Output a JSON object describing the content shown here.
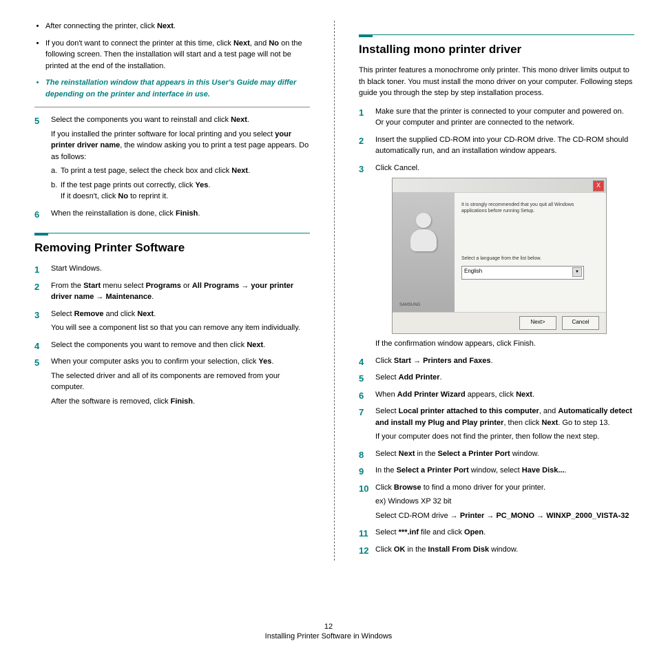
{
  "colors": {
    "accent": "#008080",
    "text": "#000000",
    "background": "#ffffff"
  },
  "left_col": {
    "bullets": {
      "b1_pre": "After connecting the printer, click ",
      "b1_bold": "Next",
      "b1_post": ".",
      "b2_pre": "If you don't want to connect the printer at this time, click ",
      "b2_bold1": "Next",
      "b2_mid": ", and ",
      "b2_bold2": "No",
      "b2_post": " on the following screen. Then the installation will start and a test page will not be printed at the end of the installation.",
      "b3_note": "The reinstallation window that appears in this User's Guide may differ depending on the printer and interface in use."
    },
    "steps_cont": {
      "s5_pre": "Select the components you want to reinstall and click ",
      "s5_bold": "Next",
      "s5_post": ".",
      "s5_sub1_pre": "If you installed the printer software for local printing and you select ",
      "s5_sub1_bold": "your printer driver name",
      "s5_sub1_post": ", the window asking you to print a test page appears. Do as follows:",
      "s5_a_letter": "a.",
      "s5_a_pre": "To print a test page, select the check box and click ",
      "s5_a_bold": "Next",
      "s5_a_post": ".",
      "s5_b_letter": "b.",
      "s5_b_pre": "If the test page prints out correctly, click ",
      "s5_b_bold": "Yes",
      "s5_b_post": ".",
      "s5_b2_pre": "If it doesn't, click ",
      "s5_b2_bold": "No",
      "s5_b2_post": " to reprint it.",
      "s6_pre": "When the reinstallation is done, click ",
      "s6_bold": "Finish",
      "s6_post": "."
    },
    "heading": "Removing Printer Software",
    "remove_steps": {
      "s1": "Start Windows.",
      "s2_pre": "From the ",
      "s2_bold1": "Start",
      "s2_mid1": " menu select ",
      "s2_bold2": "Programs",
      "s2_mid2": " or ",
      "s2_bold3": "All Programs",
      "s2_arrow1": " → ",
      "s2_bold4": "your printer driver name",
      "s2_arrow2": " → ",
      "s2_bold5": "Maintenance",
      "s2_post": ".",
      "s3_pre": "Select ",
      "s3_bold1": "Remove",
      "s3_mid": " and click ",
      "s3_bold2": "Next",
      "s3_post": ".",
      "s3_sub": "You will see a component list so that you can remove any item individually.",
      "s4_pre": "Select the components you want to remove and then click ",
      "s4_bold": "Next",
      "s4_post": ".",
      "s5_pre": "When your computer asks you to confirm your selection, click ",
      "s5_bold": "Yes",
      "s5_post": ".",
      "s5_sub1": "The selected driver and all of its components are removed from your computer.",
      "s5_sub2_pre": "After the software is removed, click ",
      "s5_sub2_bold": "Finish",
      "s5_sub2_post": "."
    }
  },
  "right_col": {
    "heading": "Installing mono printer driver",
    "intro": "This printer features a monochrome only printer. This mono driver limits output to th black toner. You must install the mono driver on your computer. Following steps guide you through the step by step installation process.",
    "steps": {
      "s1": "Make sure that the printer is connected to your computer and powered on. Or your computer and printer are connected to the network.",
      "s2": "Insert the supplied CD-ROM into your CD-ROM drive. The CD-ROM should automatically run, and an installation window appears.",
      "s3": "Click Cancel.",
      "s3_sub": "If the confirmation window appears, click Finish.",
      "s4_pre": "Click ",
      "s4_bold1": "Start",
      "s4_arrow": " → ",
      "s4_bold2": "Printers and Faxes",
      "s4_post": ".",
      "s5_pre": "Select ",
      "s5_bold": "Add Printer",
      "s5_post": ".",
      "s6_pre": "When ",
      "s6_bold1": "Add Printer Wizard",
      "s6_mid": " appears, click ",
      "s6_bold2": "Next",
      "s6_post": ".",
      "s7_pre": "Select ",
      "s7_bold1": "Local printer attached to this computer",
      "s7_mid1": ", and ",
      "s7_bold2": "Automatically detect and install my Plug and Play printer",
      "s7_mid2": ", then click ",
      "s7_bold3": "Next",
      "s7_post": ". Go to step 13.",
      "s7_sub": "If your computer does not find the printer, then follow the next step.",
      "s8_pre": "Select ",
      "s8_bold1": "Next",
      "s8_mid": " in the ",
      "s8_bold2": "Select a Printer Port",
      "s8_post": " window.",
      "s9_pre": "In the ",
      "s9_bold1": "Select a Printer Port",
      "s9_mid": " window, select ",
      "s9_bold2": "Have Disk...",
      "s9_post": ".",
      "s10_pre": "Click ",
      "s10_bold": "Browse",
      "s10_post": " to find a mono driver for your printer.",
      "s10_sub1": "ex) Windows XP 32 bit",
      "s10_sub2_pre": "Select CD-ROM drive → ",
      "s10_sub2_bold1": "Printer",
      "s10_sub2_arrow1": " → ",
      "s10_sub2_bold2": "PC_MONO",
      "s10_sub2_arrow2": " → ",
      "s10_sub2_bold3": "WINXP_2000_VISTA-32",
      "s11_pre": "Select ",
      "s11_bold1": "***.inf",
      "s11_mid": " file and click ",
      "s11_bold2": "Open",
      "s11_post": ".",
      "s12_pre": "Click ",
      "s12_bold1": "OK",
      "s12_mid": " in the ",
      "s12_bold2": "Install From Disk",
      "s12_post": " window."
    },
    "screenshot": {
      "close": "X",
      "msg1": "It is strongly recommended that you quit all Windows applications before running Setup.",
      "msg2": "Select a language from the list below.",
      "dropdown": "English",
      "samsung": "SAMSUNG",
      "btn_next": "Next>",
      "btn_cancel": "Cancel"
    }
  },
  "footer": {
    "page_number": "12",
    "section_title": "Installing Printer Software in Windows"
  }
}
